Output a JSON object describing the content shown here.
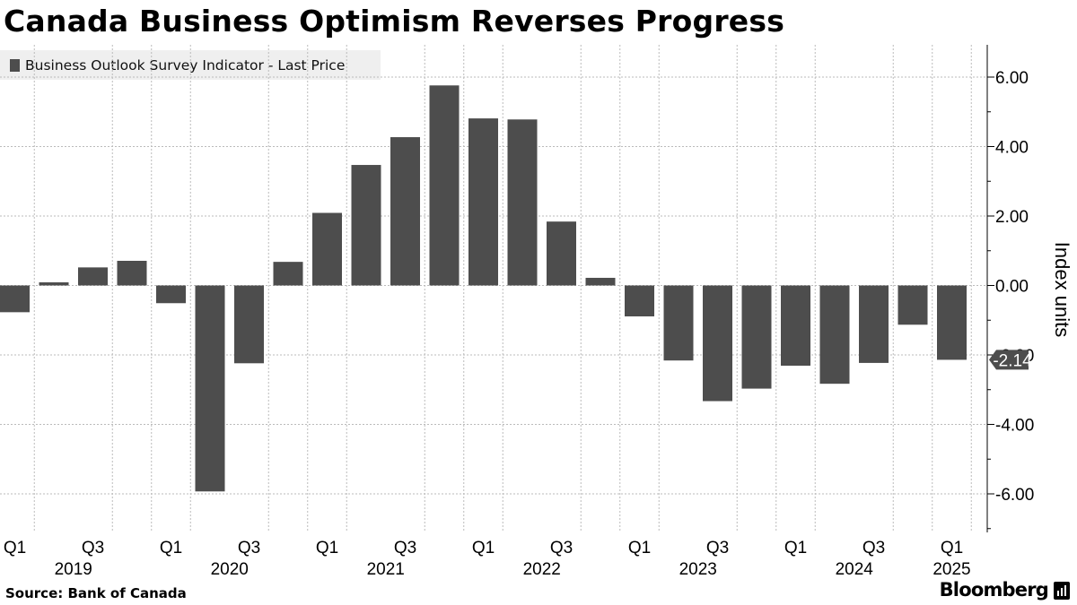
{
  "brand": {
    "name": "Bloomberg",
    "icon": "bloomberg-terminal-icon"
  },
  "source": "Source:  Bank of Canada",
  "chart_data": {
    "type": "bar",
    "title": "Canada Business Optimism Reverses Progress",
    "ylabel": "Index units",
    "xlabel": "",
    "ylim": [
      -7,
      6.8
    ],
    "yticks": [
      6,
      4,
      2,
      0,
      -2,
      -4,
      -6
    ],
    "ytick_labels": [
      "6.00",
      "4.00",
      "2.00",
      "0.00",
      "-2.00",
      "-4.00",
      "-6.00"
    ],
    "grid": true,
    "legend_position": "top-left",
    "colors": {
      "bar": "#4d4d4d",
      "grid": "#bbbbbb",
      "legend_bg": "#efefef",
      "axis": "#000000"
    },
    "series": [
      {
        "name": "Business Outlook Survey Indicator - Last Price",
        "values": [
          -0.77,
          0.09,
          0.52,
          0.71,
          -0.51,
          -5.93,
          -2.24,
          0.68,
          2.09,
          3.47,
          4.27,
          5.76,
          4.81,
          4.78,
          1.84,
          0.22,
          -0.89,
          -2.16,
          -3.33,
          -2.97,
          -2.31,
          -2.83,
          -2.23,
          -1.13,
          -2.14
        ]
      }
    ],
    "categories": [
      "2019 Q1",
      "2019 Q2",
      "2019 Q3",
      "2019 Q4",
      "2020 Q1",
      "2020 Q2",
      "2020 Q3",
      "2020 Q4",
      "2021 Q1",
      "2021 Q2",
      "2021 Q3",
      "2021 Q4",
      "2022 Q1",
      "2022 Q2",
      "2022 Q3",
      "2022 Q4",
      "2023 Q1",
      "2023 Q2",
      "2023 Q3",
      "2023 Q4",
      "2024 Q1",
      "2024 Q2",
      "2024 Q3",
      "2024 Q4",
      "2025 Q1"
    ],
    "quarter_labels": [
      {
        "index": 0,
        "label": "Q1"
      },
      {
        "index": 2,
        "label": "Q3"
      },
      {
        "index": 4,
        "label": "Q1"
      },
      {
        "index": 6,
        "label": "Q3"
      },
      {
        "index": 8,
        "label": "Q1"
      },
      {
        "index": 10,
        "label": "Q3"
      },
      {
        "index": 12,
        "label": "Q1"
      },
      {
        "index": 14,
        "label": "Q3"
      },
      {
        "index": 16,
        "label": "Q1"
      },
      {
        "index": 18,
        "label": "Q3"
      },
      {
        "index": 20,
        "label": "Q1"
      },
      {
        "index": 22,
        "label": "Q3"
      },
      {
        "index": 24,
        "label": "Q1"
      }
    ],
    "year_labels": [
      {
        "center": 1.5,
        "label": "2019"
      },
      {
        "center": 5.5,
        "label": "2020"
      },
      {
        "center": 9.5,
        "label": "2021"
      },
      {
        "center": 13.5,
        "label": "2022"
      },
      {
        "center": 17.5,
        "label": "2023"
      },
      {
        "center": 21.5,
        "label": "2024"
      },
      {
        "center": 24,
        "label": "2025"
      }
    ],
    "last_value_label": "-2.14",
    "last_value": -2.14
  }
}
